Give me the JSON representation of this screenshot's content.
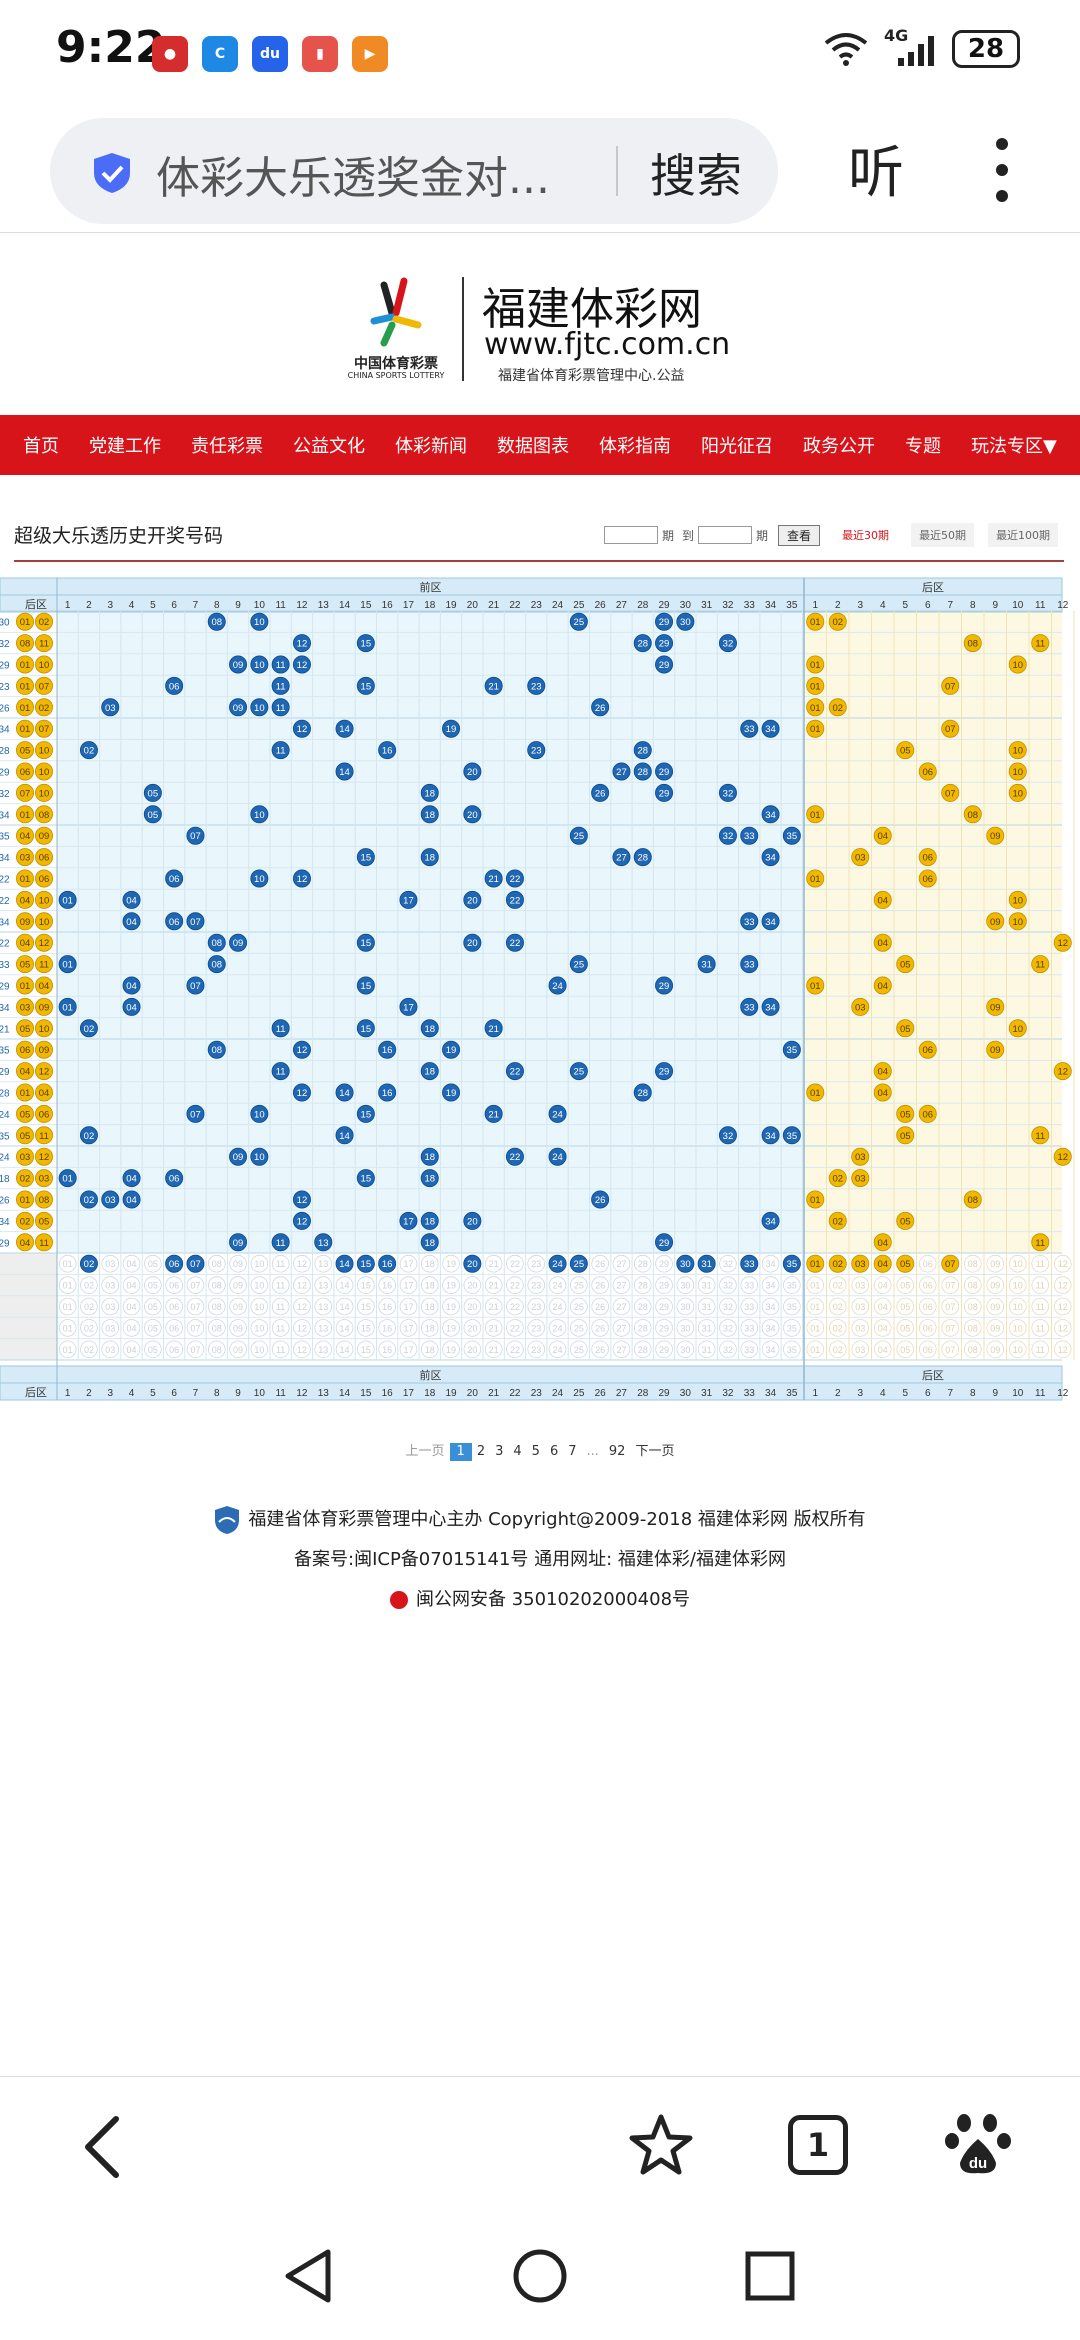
{
  "status": {
    "time": "9:22",
    "battery": "28",
    "network": "4G"
  },
  "browser": {
    "url_text": "体彩大乐透奖金对...",
    "search": "搜索",
    "listen": "听",
    "tab_count": "1"
  },
  "site": {
    "name": "福建体彩网",
    "url": "www.fjtc.com.cn",
    "sub": "福建省体育彩票管理中心.公益",
    "logo_cn": "中国体育彩票",
    "logo_en": "CHINA SPORTS LOTTERY"
  },
  "nav": [
    "首页",
    "党建工作",
    "责任彩票",
    "公益文化",
    "体彩新闻",
    "数据图表",
    "体彩指南",
    "阳光征召",
    "政务公开",
    "专题",
    "玩法专区▼"
  ],
  "page": {
    "title": "超级大乐透历史开奖号码",
    "query": "查看",
    "period1": "期",
    "to": "到",
    "period2": "期",
    "tabs": [
      "最近30期",
      "最近50期",
      "最近100期"
    ]
  },
  "table": {
    "front_label": "前区",
    "back_label": "后区",
    "back_col": "后区",
    "front_nums": [
      "1",
      "2",
      "3",
      "4",
      "5",
      "6",
      "7",
      "8",
      "9",
      "10",
      "11",
      "12",
      "13",
      "14",
      "15",
      "16",
      "17",
      "18",
      "19",
      "20",
      "21",
      "22",
      "23",
      "24",
      "25",
      "26",
      "27",
      "28",
      "29",
      "30",
      "31",
      "32",
      "33",
      "34",
      "35"
    ],
    "back_nums": [
      "1",
      "2",
      "3",
      "4",
      "5",
      "6",
      "7",
      "8",
      "9",
      "10",
      "11",
      "12"
    ],
    "rows": [
      {
        "left": [
          "30",
          "01",
          "02"
        ],
        "front": [
          8,
          10,
          25,
          29,
          30
        ],
        "back": [
          1,
          2
        ]
      },
      {
        "left": [
          "32",
          "08",
          "11"
        ],
        "front": [
          12,
          15,
          28,
          29,
          32
        ],
        "back": [
          8,
          11
        ]
      },
      {
        "left": [
          "29",
          "01",
          "10"
        ],
        "front": [
          9,
          10,
          11,
          12,
          29
        ],
        "back": [
          1,
          10
        ]
      },
      {
        "left": [
          "23",
          "01",
          "07"
        ],
        "front": [
          6,
          11,
          15,
          21,
          23
        ],
        "back": [
          1,
          7
        ]
      },
      {
        "left": [
          "26",
          "01",
          "02"
        ],
        "front": [
          3,
          9,
          10,
          11,
          26
        ],
        "back": [
          1,
          2
        ]
      },
      {
        "left": [
          "34",
          "01",
          "07"
        ],
        "front": [
          12,
          14,
          19,
          33,
          34
        ],
        "back": [
          1,
          7
        ]
      },
      {
        "left": [
          "28",
          "05",
          "10"
        ],
        "front": [
          2,
          11,
          16,
          23,
          28
        ],
        "back": [
          5,
          10
        ]
      },
      {
        "left": [
          "29",
          "06",
          "10"
        ],
        "front": [
          14,
          20,
          27,
          28,
          29
        ],
        "back": [
          6,
          10
        ]
      },
      {
        "left": [
          "32",
          "07",
          "10"
        ],
        "front": [
          5,
          18,
          26,
          29,
          32
        ],
        "back": [
          7,
          10
        ]
      },
      {
        "left": [
          "34",
          "01",
          "08"
        ],
        "front": [
          5,
          10,
          18,
          20,
          34
        ],
        "back": [
          1,
          8
        ]
      },
      {
        "left": [
          "35",
          "04",
          "09"
        ],
        "front": [
          7,
          25,
          32,
          33,
          35
        ],
        "back": [
          4,
          9
        ]
      },
      {
        "left": [
          "34",
          "03",
          "06"
        ],
        "front": [
          15,
          18,
          27,
          28,
          34
        ],
        "back": [
          3,
          6
        ]
      },
      {
        "left": [
          "22",
          "01",
          "06"
        ],
        "front": [
          6,
          10,
          12,
          21,
          22
        ],
        "back": [
          1,
          6
        ]
      },
      {
        "left": [
          "22",
          "04",
          "10"
        ],
        "front": [
          1,
          4,
          17,
          20,
          22
        ],
        "back": [
          4,
          10
        ]
      },
      {
        "left": [
          "34",
          "09",
          "10"
        ],
        "front": [
          4,
          6,
          7,
          33,
          34
        ],
        "back": [
          9,
          10
        ]
      },
      {
        "left": [
          "22",
          "04",
          "12"
        ],
        "front": [
          8,
          9,
          15,
          20,
          22
        ],
        "back": [
          4,
          12
        ]
      },
      {
        "left": [
          "33",
          "05",
          "11"
        ],
        "front": [
          1,
          8,
          25,
          31,
          33
        ],
        "back": [
          5,
          11
        ]
      },
      {
        "left": [
          "29",
          "01",
          "04"
        ],
        "front": [
          4,
          7,
          15,
          24,
          29
        ],
        "back": [
          1,
          4
        ]
      },
      {
        "left": [
          "34",
          "03",
          "09"
        ],
        "front": [
          1,
          4,
          17,
          33,
          34
        ],
        "back": [
          3,
          9
        ]
      },
      {
        "left": [
          "21",
          "05",
          "10"
        ],
        "front": [
          2,
          11,
          15,
          18,
          21
        ],
        "back": [
          5,
          10
        ]
      },
      {
        "left": [
          "35",
          "06",
          "09"
        ],
        "front": [
          8,
          12,
          16,
          19,
          35
        ],
        "back": [
          6,
          9
        ]
      },
      {
        "left": [
          "29",
          "04",
          "12"
        ],
        "front": [
          11,
          18,
          22,
          25,
          29
        ],
        "back": [
          4,
          12
        ]
      },
      {
        "left": [
          "28",
          "01",
          "04"
        ],
        "front": [
          12,
          14,
          16,
          19,
          28
        ],
        "back": [
          1,
          4
        ]
      },
      {
        "left": [
          "24",
          "05",
          "06"
        ],
        "front": [
          7,
          10,
          15,
          21,
          24
        ],
        "back": [
          5,
          6
        ]
      },
      {
        "left": [
          "35",
          "05",
          "11"
        ],
        "front": [
          2,
          14,
          32,
          34,
          35
        ],
        "back": [
          5,
          11
        ]
      },
      {
        "left": [
          "24",
          "03",
          "12"
        ],
        "front": [
          9,
          10,
          18,
          22,
          24
        ],
        "back": [
          3,
          12
        ]
      },
      {
        "left": [
          "18",
          "02",
          "03"
        ],
        "front": [
          1,
          4,
          6,
          15,
          18
        ],
        "back": [
          2,
          3
        ]
      },
      {
        "left": [
          "26",
          "01",
          "08"
        ],
        "front": [
          2,
          3,
          4,
          12,
          26
        ],
        "back": [
          1,
          8
        ]
      },
      {
        "left": [
          "34",
          "02",
          "05"
        ],
        "front": [
          12,
          17,
          18,
          20,
          34
        ],
        "back": [
          2,
          5
        ]
      },
      {
        "left": [
          "29",
          "04",
          "11"
        ],
        "front": [
          9,
          11,
          13,
          18,
          29
        ],
        "back": [
          4,
          11
        ]
      }
    ],
    "freq_front": [
      2,
      6,
      7,
      14,
      15,
      16,
      20,
      24,
      25,
      30,
      31,
      33,
      35
    ],
    "freq_back": [
      1,
      2,
      3,
      4,
      5,
      7
    ]
  },
  "pager": {
    "prev": "上一页",
    "pages": [
      "1",
      "2",
      "3",
      "4",
      "5",
      "6",
      "7"
    ],
    "ellipsis": "...",
    "last": "92",
    "next": "下一页"
  },
  "footer": {
    "line1": "福建省体育彩票管理中心主办 Copyright@2009-2018 福建体彩网 版权所有",
    "line2": "备案号:闽ICP备07015141号    通用网址:  福建体彩/福建体彩网",
    "line3": "闽公网安备 35010202000408号"
  },
  "colors": {
    "nav": "#d8141b",
    "blue_ball": "#1f67b3",
    "gold_ball": "#f0b800",
    "front_bg": "#e9f6fb",
    "back_bg": "#fdf8e2",
    "header_bg": "#d6ebf7"
  }
}
